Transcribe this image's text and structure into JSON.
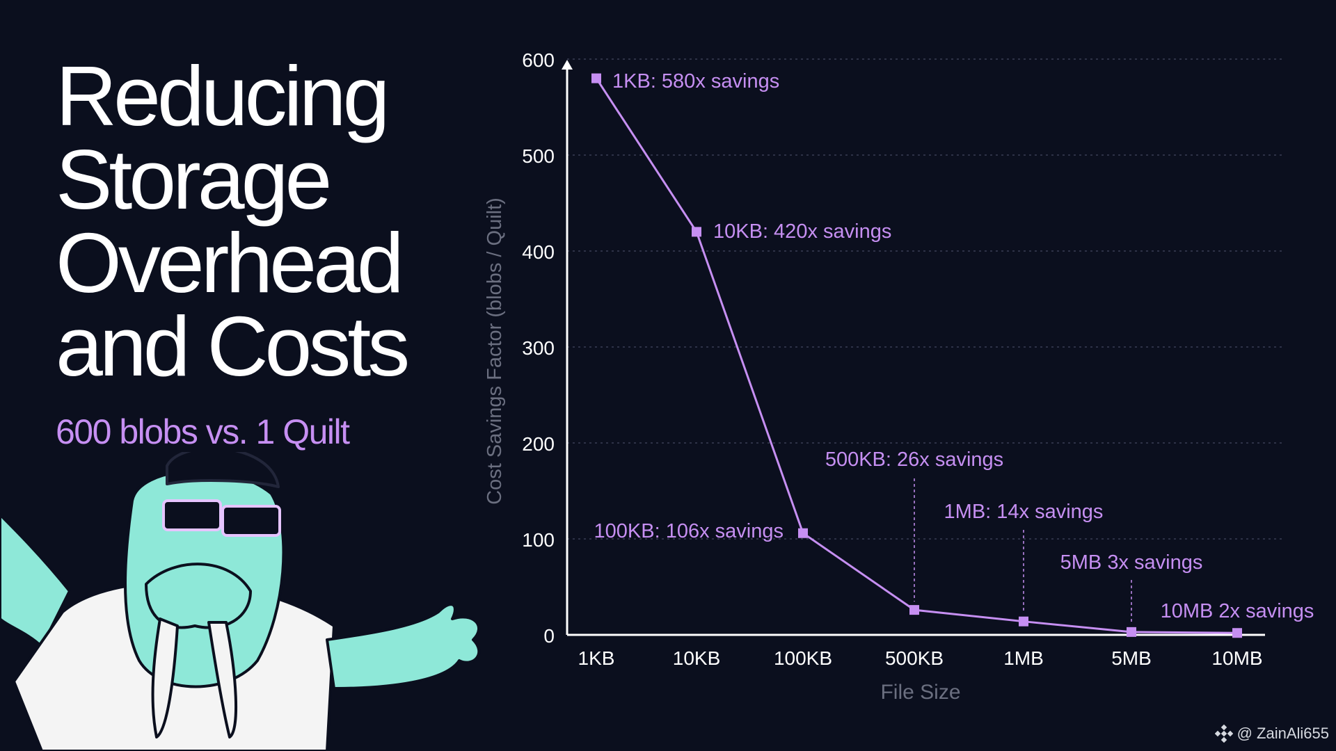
{
  "headline": {
    "lines": [
      "Reducing",
      "Storage",
      "Overhead",
      "and Costs"
    ],
    "subtitle": "600 blobs vs. 1 Quilt"
  },
  "watermark": {
    "handle": "@ ZainAli655",
    "icon": "binance-diamond-icon"
  },
  "colors": {
    "background": "#0b0f1e",
    "accent": "#c68ff2",
    "axis_label": "#6b6f80",
    "walrus": "#8ee8d8"
  },
  "chart_data": {
    "type": "line",
    "title": "",
    "xlabel": "File Size",
    "ylabel": "Cost Savings Factor (blobs / Quilt)",
    "categories": [
      "1KB",
      "10KB",
      "100KB",
      "500KB",
      "1MB",
      "5MB",
      "10MB"
    ],
    "values": [
      580,
      420,
      106,
      26,
      14,
      3,
      2
    ],
    "ylim": [
      0,
      600
    ],
    "yticks": [
      "0",
      "100",
      "200",
      "300",
      "400",
      "500",
      "600"
    ],
    "grid": true,
    "annotations": [
      "1KB: 580x savings",
      "10KB: 420x savings",
      "100KB:  106x savings",
      "500KB: 26x savings",
      "1MB: 14x savings",
      "5MB 3x savings",
      "10MB 2x savings"
    ]
  }
}
